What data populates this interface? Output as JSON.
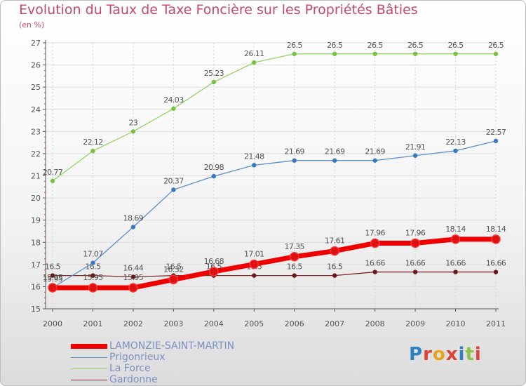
{
  "title": "Evolution du Taux de Taxe Foncière sur les Propriétés Bâties",
  "unit_label": "(en %)",
  "brand": "Proxiti",
  "brand_colors": [
    "#2f7fc1",
    "#e0403a",
    "#e8a21f",
    "#e0403a",
    "#2f7fc1",
    "#8bc34a",
    "#e0403a"
  ],
  "chart_data": {
    "type": "line",
    "title": "Evolution du Taux de Taxe Foncière sur les Propriétés Bâties",
    "ylabel": "(en %)",
    "xlabel": "",
    "ylim": [
      15,
      27
    ],
    "yticks": [
      15,
      16,
      17,
      18,
      19,
      20,
      21,
      22,
      23,
      24,
      25,
      26,
      27
    ],
    "grid": true,
    "categories": [
      "2000",
      "2001",
      "2002",
      "2003",
      "2004",
      "2005",
      "2006",
      "2007",
      "2008",
      "2009",
      "2010",
      "2011"
    ],
    "series": [
      {
        "name": "LAMONZIE-SAINT-MARTIN",
        "color": "#ee0000",
        "marker": "#dd1111",
        "values": [
          15.95,
          15.95,
          15.95,
          16.32,
          16.68,
          17.01,
          17.35,
          17.61,
          17.96,
          17.96,
          18.14,
          18.14
        ],
        "labels": [
          "15.95",
          "15.95",
          "15.95",
          "16.32",
          "16.68",
          "17.01",
          "17.35",
          "17.61",
          "17.96",
          "17.96",
          "18.14",
          "18.14"
        ]
      },
      {
        "name": "Prigonrieux",
        "color": "#5f8fc6",
        "marker": "#3a78c0",
        "values": [
          15.95,
          17.07,
          18.69,
          20.37,
          20.98,
          21.48,
          21.69,
          21.69,
          21.69,
          21.91,
          22.13,
          22.57
        ],
        "labels": [
          "15.95",
          "17.07",
          "18.69",
          "20.37",
          "20.98",
          "21.48",
          "21.69",
          "21.69",
          "21.69",
          "21.91",
          "22.13",
          "22.57"
        ]
      },
      {
        "name": "La Force",
        "color": "#97d36b",
        "marker": "#7ac142",
        "values": [
          20.77,
          22.12,
          23,
          24.03,
          25.23,
          26.11,
          26.5,
          26.5,
          26.5,
          26.5,
          26.5,
          26.5
        ],
        "labels": [
          "20.77",
          "22.12",
          "23",
          "24.03",
          "25.23",
          "26.11",
          "26.5",
          "26.5",
          "26.5",
          "26.5",
          "26.5",
          "26.5"
        ]
      },
      {
        "name": "Gardonne",
        "color": "#7a2a2a",
        "marker": "#6a1a1a",
        "values": [
          16.5,
          16.5,
          16.44,
          16.5,
          16.5,
          16.5,
          16.5,
          16.5,
          16.66,
          16.66,
          16.66,
          16.66
        ],
        "labels": [
          "16.5",
          "16.5",
          "16.44",
          "16.5",
          "16.5",
          "16.5",
          "16.5",
          "16.5",
          "16.66",
          "16.66",
          "16.66",
          "16.66"
        ]
      }
    ],
    "legend_position": "bottom-left"
  }
}
